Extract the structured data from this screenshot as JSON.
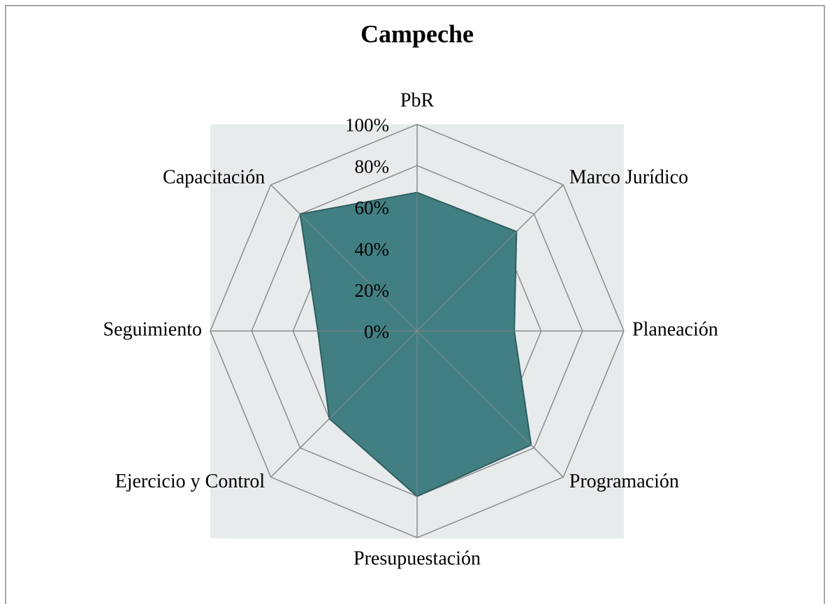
{
  "chart_data": {
    "type": "radar",
    "title": "Campeche",
    "categories": [
      "PbR",
      "Marco Jurídico",
      "Planeación",
      "Programación",
      "Presupuestación",
      "Ejercicio y Control",
      "Seguimiento",
      "Capacitación"
    ],
    "values": [
      67,
      68,
      47,
      78,
      80,
      60,
      48,
      80
    ],
    "color": "#417f82",
    "ylim": [
      0,
      100
    ],
    "yticks": [
      {
        "value": 0,
        "label": "0%"
      },
      {
        "value": 20,
        "label": "20%"
      },
      {
        "value": 40,
        "label": "40%"
      },
      {
        "value": 60,
        "label": "60%"
      },
      {
        "value": 80,
        "label": "80%"
      },
      {
        "value": 100,
        "label": "100%"
      }
    ],
    "grid": true
  }
}
